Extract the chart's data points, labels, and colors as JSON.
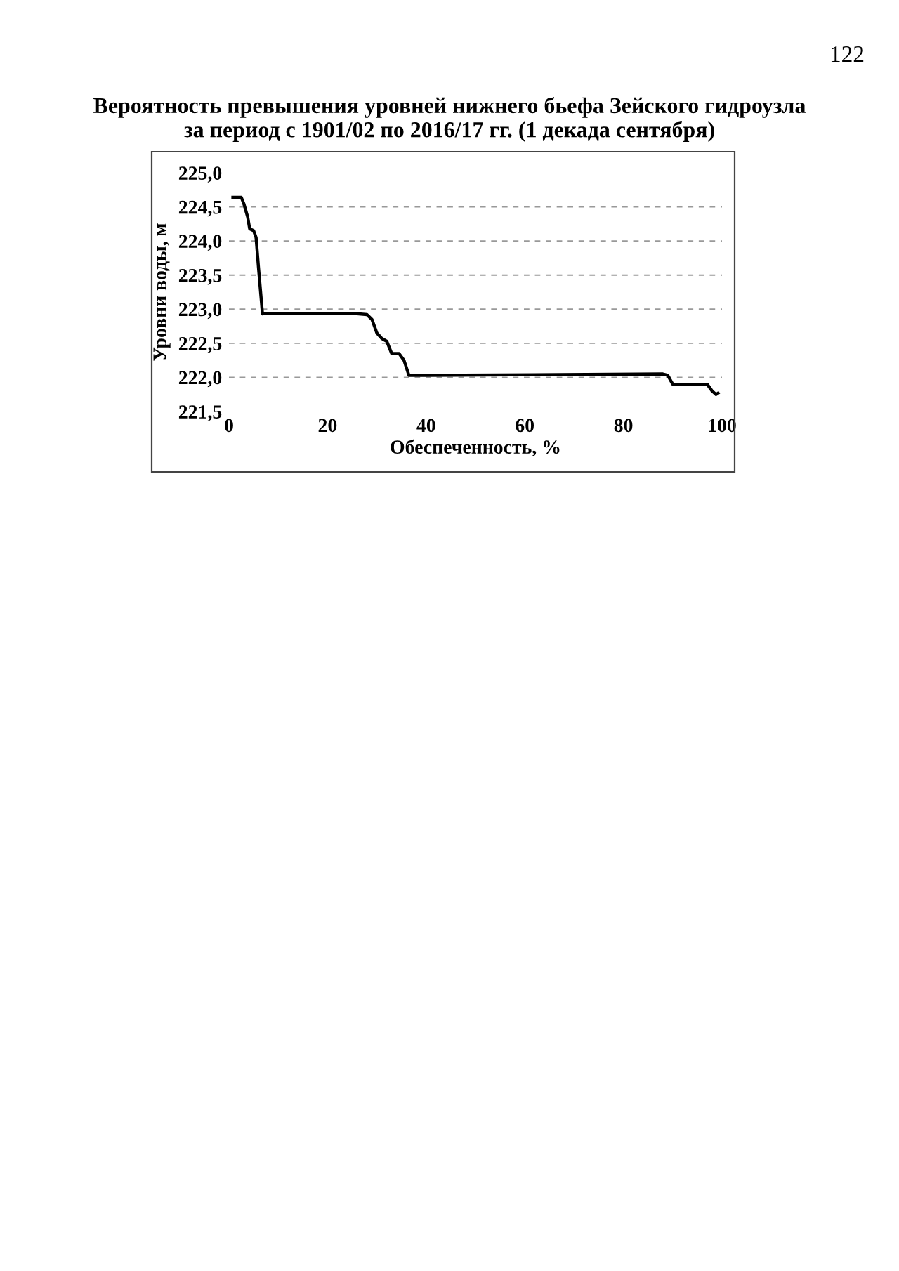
{
  "chart_data": {
    "type": "line",
    "title": "Вероятность превышения уровней нижнего бьефа Зейского гидроузла\nза период с 1901/02 по 2016/17 гг. (1 декада сентября)",
    "xlabel": "Обеспеченность, %",
    "ylabel": "Уровни воды, м",
    "annotations": [
      "122"
    ],
    "series": [
      {
        "color": "#000000",
        "x": [
          0.8,
          2.5,
          3,
          3.8,
          4.2,
          5,
          5.5,
          6,
          6.8,
          7.5,
          25,
          28,
          29,
          30,
          31,
          32,
          33,
          34.5,
          35.5,
          36.5,
          40,
          88,
          89,
          90,
          97,
          98,
          98.8,
          99.2
        ],
        "values": [
          224.64,
          224.64,
          224.55,
          224.35,
          224.18,
          224.15,
          224.05,
          223.6,
          222.93,
          222.94,
          222.94,
          222.92,
          222.85,
          222.65,
          222.57,
          222.53,
          222.35,
          222.35,
          222.25,
          222.03,
          222.03,
          222.05,
          222.03,
          221.9,
          221.9,
          221.8,
          221.75,
          221.77
        ]
      }
    ],
    "xlim": [
      0,
      100
    ],
    "ylim": [
      221.5,
      225.0
    ],
    "xticks": [
      0,
      20,
      40,
      60,
      80,
      100
    ],
    "yticks": [
      {
        "value": 221.5,
        "label": "221,5"
      },
      {
        "value": 222.0,
        "label": "222,0"
      },
      {
        "value": 222.5,
        "label": "222,5"
      },
      {
        "value": 223.0,
        "label": "223,0"
      },
      {
        "value": 223.5,
        "label": "223,5"
      },
      {
        "value": 224.0,
        "label": "224,0"
      },
      {
        "value": 224.5,
        "label": "224,5"
      },
      {
        "value": 225.0,
        "label": "225,0"
      }
    ],
    "grid": "y",
    "marker": "none",
    "line_style": "solid",
    "legend": false
  }
}
